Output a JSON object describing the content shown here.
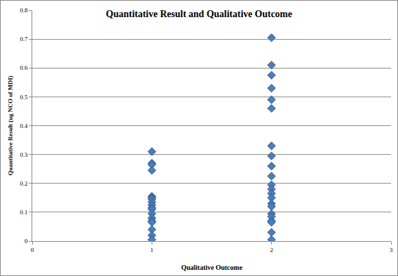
{
  "chart_data": {
    "type": "scatter",
    "title": "Quantitative Result and Qualitative Outcome",
    "x_label": "Qualitative Outcome",
    "y_label": "Quantitative Result (ug NCO of MDI)",
    "x": [
      1,
      1,
      1,
      1,
      1,
      1,
      1,
      1,
      1,
      1,
      1,
      1,
      1,
      1,
      1,
      1,
      1,
      1,
      2,
      2,
      2,
      2,
      2,
      2,
      2,
      2,
      2,
      2,
      2,
      2,
      2,
      2,
      2,
      2,
      2,
      2,
      2,
      2,
      2,
      2
    ],
    "values": [
      0.31,
      0.27,
      0.265,
      0.245,
      0.155,
      0.15,
      0.145,
      0.135,
      0.125,
      0.115,
      0.11,
      0.095,
      0.08,
      0.07,
      0.065,
      0.04,
      0.02,
      0.005,
      0.705,
      0.61,
      0.575,
      0.53,
      0.49,
      0.46,
      0.33,
      0.295,
      0.26,
      0.225,
      0.195,
      0.18,
      0.165,
      0.15,
      0.13,
      0.12,
      0.095,
      0.085,
      0.07,
      0.065,
      0.03,
      0.005
    ],
    "color": "#4a7ebb",
    "marker": "diamond",
    "xlim": [
      0,
      3
    ],
    "xticks": [
      0,
      1,
      2,
      3
    ],
    "ylim": [
      0,
      0.8
    ],
    "yticks": [
      0,
      0.1,
      0.2,
      0.3,
      0.4,
      0.5,
      0.6,
      0.7,
      0.8
    ],
    "grid": true
  }
}
